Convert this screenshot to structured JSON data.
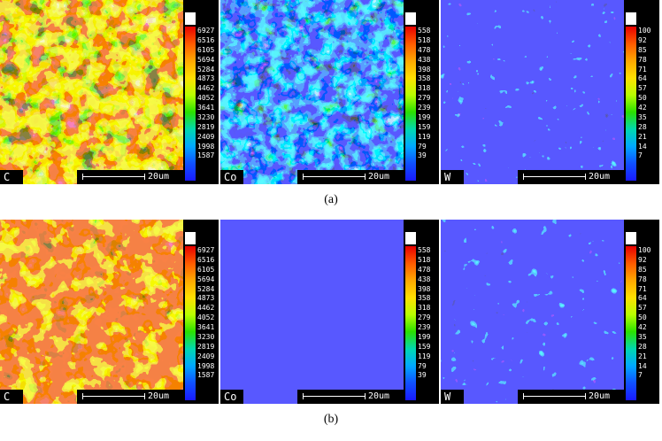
{
  "panels": {
    "a": {
      "caption": "(a)",
      "maps": [
        {
          "element": "C",
          "scale": "20um",
          "palette": "carbon",
          "colorbar": [
            "6927",
            "6516",
            "6105",
            "5694",
            "5284",
            "4873",
            "4462",
            "4052",
            "3641",
            "3230",
            "2819",
            "2409",
            "1998",
            "1587"
          ]
        },
        {
          "element": "Co",
          "scale": "20um",
          "palette": "cobalt_network",
          "colorbar": [
            "558",
            "518",
            "478",
            "438",
            "398",
            "358",
            "318",
            "279",
            "239",
            "199",
            "159",
            "119",
            "79",
            "39"
          ]
        },
        {
          "element": "W",
          "scale": "20um",
          "palette": "tungsten",
          "colorbar": [
            "100",
            "92",
            "85",
            "78",
            "71",
            "64",
            "57",
            "50",
            "42",
            "35",
            "28",
            "21",
            "14",
            "7"
          ]
        }
      ]
    },
    "b": {
      "caption": "(b)",
      "maps": [
        {
          "element": "C",
          "scale": "20um",
          "palette": "carbon",
          "colorbar": [
            "6927",
            "6516",
            "6105",
            "5694",
            "5284",
            "4873",
            "4462",
            "4052",
            "3641",
            "3230",
            "2819",
            "2409",
            "1998",
            "1587"
          ]
        },
        {
          "element": "Co",
          "scale": "20um",
          "palette": "cobalt_sparse",
          "colorbar": [
            "558",
            "518",
            "478",
            "438",
            "398",
            "358",
            "318",
            "279",
            "239",
            "199",
            "159",
            "119",
            "79",
            "39"
          ]
        },
        {
          "element": "W",
          "scale": "20um",
          "palette": "tungsten",
          "colorbar": [
            "100",
            "92",
            "85",
            "78",
            "71",
            "64",
            "57",
            "50",
            "42",
            "35",
            "28",
            "21",
            "14",
            "7"
          ]
        }
      ]
    }
  },
  "colors": {
    "map_background_blue": "#1a1aff",
    "carbon_red": "#e82a10",
    "colorbar_background": "#000000"
  }
}
